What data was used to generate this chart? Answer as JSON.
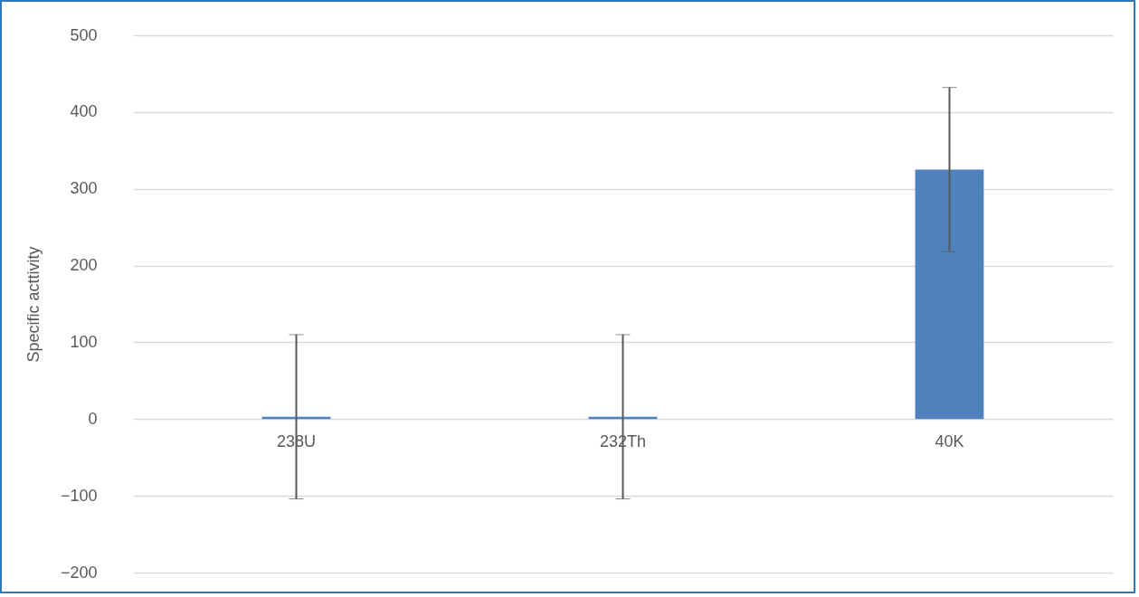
{
  "chart_data": {
    "type": "bar",
    "ylabel": "Specific acttivity",
    "categories": [
      "238U",
      "232Th",
      "40K"
    ],
    "series": [
      {
        "color": "#4f81bd",
        "values": [
          3,
          3,
          325
        ],
        "errors": [
          107,
          107,
          107
        ]
      }
    ],
    "ylim": [
      -200,
      500
    ],
    "yticks": [
      -200,
      -100,
      0,
      100,
      200,
      300,
      400,
      500
    ],
    "grid": "y"
  }
}
